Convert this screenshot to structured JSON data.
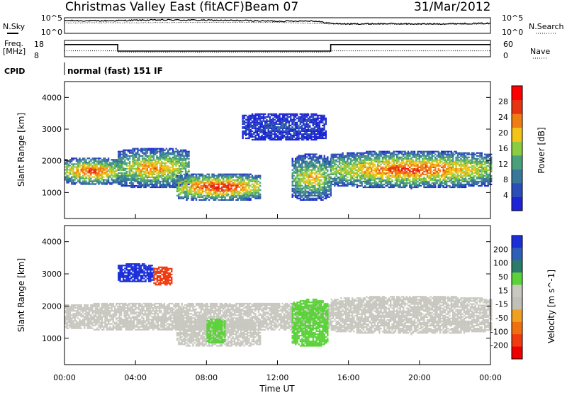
{
  "header": {
    "title": "Christmas Valley East (fitACF)",
    "beam": "Beam 07",
    "date": "31/Mar/2012"
  },
  "top_panels": {
    "nsky_label": "N.Sky",
    "nsky_ticks": [
      "10^5",
      "10^0"
    ],
    "nsearch_label": "N.Search",
    "nsearch_ticks": [
      "10^5",
      "10^0"
    ],
    "freq_label": "Freq.",
    "freq_unit": "[MHz]",
    "freq_ticks": [
      "18",
      "8"
    ],
    "nave_label": "Nave",
    "nave_ticks": [
      "60",
      "0"
    ],
    "cpid_label": "CPID",
    "cpid_value": "normal (fast) 151 IF"
  },
  "colors": {
    "power_scale": [
      "#1d24d6",
      "#2b4db8",
      "#39789a",
      "#4aa07c",
      "#8ccc40",
      "#f2c419",
      "#f07d14",
      "#e63412",
      "#ff0000"
    ],
    "velocity_scale": [
      "#1a2fd8",
      "#2e5fb6",
      "#2b7a6a",
      "#5cd23a",
      "#c8c8c0",
      "#c0c0b8",
      "#f0a020",
      "#f07010",
      "#f03a10",
      "#ee0000"
    ],
    "freq_line": "#000000",
    "nave_line": "#000000"
  },
  "chart_data": [
    {
      "type": "line",
      "name": "N.Sky / N.Search",
      "xlim": [
        0,
        24
      ],
      "ylim_log10": [
        0,
        5
      ],
      "series": [
        {
          "name": "N.Sky",
          "x": [
            0,
            2,
            4,
            6,
            8,
            10,
            12,
            14,
            15,
            16,
            18,
            20,
            22,
            24
          ],
          "y_log10": [
            4.1,
            4.0,
            4.2,
            4.3,
            4.2,
            4.1,
            3.9,
            4.0,
            3.2,
            3.0,
            3.1,
            3.0,
            3.1,
            3.2
          ]
        },
        {
          "name": "N.Search",
          "x": [
            0,
            4,
            8,
            12,
            15,
            16,
            20,
            24
          ],
          "y_log10": [
            3.4,
            3.4,
            3.5,
            3.5,
            3.0,
            2.9,
            2.9,
            3.0
          ]
        }
      ]
    },
    {
      "type": "line",
      "name": "Freq / Nave",
      "xlim": [
        0,
        24
      ],
      "freq_ylim_mhz": [
        8,
        18
      ],
      "nave_ylim": [
        0,
        60
      ],
      "series": [
        {
          "name": "Freq.",
          "x": [
            0,
            3,
            3,
            15,
            15,
            24
          ],
          "y": [
            15.5,
            15.5,
            11.5,
            11.5,
            15.5,
            15.5
          ]
        },
        {
          "name": "Nave",
          "x": [
            0,
            3,
            3,
            15,
            15,
            24
          ],
          "y": [
            22,
            22,
            17,
            17,
            22,
            22
          ]
        }
      ]
    },
    {
      "type": "heatmap",
      "name": "Power",
      "xlabel": "",
      "ylabel": "Slant Range [km]",
      "xlim": [
        0,
        24
      ],
      "ylim": [
        180,
        4500
      ],
      "yticks": [
        1000,
        2000,
        3000,
        4000
      ],
      "colorbar_label": "Power [dB]",
      "colorbar_ticks": [
        4,
        8,
        12,
        16,
        20,
        24,
        28
      ],
      "colorbar_range": [
        0,
        32
      ],
      "features": [
        {
          "t": [
            0.0,
            3.0
          ],
          "r": [
            1200,
            2100
          ],
          "peak": 28
        },
        {
          "t": [
            3.0,
            7.0
          ],
          "r": [
            1100,
            2400
          ],
          "peak": 24
        },
        {
          "t": [
            6.3,
            11.0
          ],
          "r": [
            700,
            1600
          ],
          "peak": 30
        },
        {
          "t": [
            12.8,
            15.0
          ],
          "r": [
            700,
            2200
          ],
          "peak": 22
        },
        {
          "t": [
            15.0,
            24.0
          ],
          "r": [
            1100,
            2300
          ],
          "peak": 28
        },
        {
          "t": [
            10.0,
            14.7
          ],
          "r": [
            2600,
            3500
          ],
          "peak": 6
        }
      ]
    },
    {
      "type": "heatmap",
      "name": "Velocity",
      "xlabel": "Time UT",
      "ylabel": "Slant Range [km]",
      "xlim": [
        0,
        24
      ],
      "ylim": [
        180,
        4500
      ],
      "xticks": [
        "00:00",
        "04:00",
        "08:00",
        "12:00",
        "16:00",
        "20:00",
        "00:00"
      ],
      "yticks": [
        1000,
        2000,
        3000,
        4000
      ],
      "colorbar_label": "Velocity [m s^-1]",
      "colorbar_ticks": [
        200,
        100,
        50,
        15,
        -15,
        -50,
        -100,
        -200
      ],
      "features": [
        {
          "t": [
            0.0,
            15.0
          ],
          "r": [
            1200,
            2100
          ],
          "v": 0
        },
        {
          "t": [
            6.3,
            11.0
          ],
          "r": [
            700,
            1600
          ],
          "v": 0
        },
        {
          "t": [
            8.0,
            9.0
          ],
          "r": [
            800,
            1600
          ],
          "v": 60
        },
        {
          "t": [
            3.0,
            5.0
          ],
          "r": [
            2700,
            3300
          ],
          "v": 220
        },
        {
          "t": [
            5.0,
            6.0
          ],
          "r": [
            2600,
            3200
          ],
          "v": -120
        },
        {
          "t": [
            12.8,
            14.8
          ],
          "r": [
            700,
            2200
          ],
          "v": 60
        },
        {
          "t": [
            15.0,
            24.0
          ],
          "r": [
            1100,
            2300
          ],
          "v": 0
        }
      ]
    }
  ]
}
